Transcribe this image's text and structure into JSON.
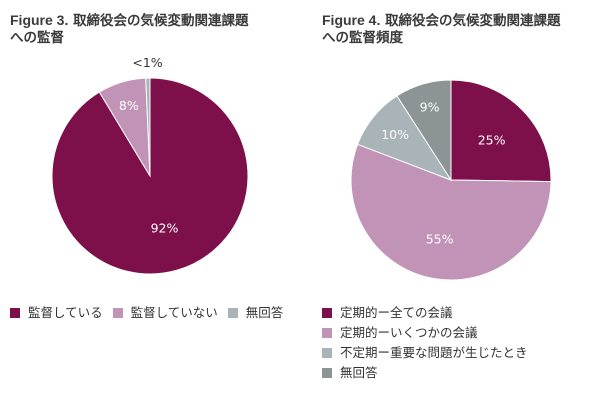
{
  "charts": [
    {
      "title_prefix": "Figure 3.",
      "title_line1": "取締役会の気候変動関連課題",
      "title_line2": "への監督"
    },
    {
      "title_prefix": "Figure 4.",
      "title_line1": "取締役会の気候変動関連課題",
      "title_line2": "への監督頻度"
    }
  ],
  "chart_data": [
    {
      "type": "pie",
      "slices": [
        {
          "label": "監督している",
          "value": 92,
          "display": "92%",
          "color": "#7d0f4a",
          "text_color": "#ffffff"
        },
        {
          "label": "監督していない",
          "value": 8,
          "display": "8%",
          "color": "#c193b7",
          "text_color": "#ffffff"
        },
        {
          "label": "無回答",
          "value": 0.7,
          "display": "<1%",
          "color": "#a9b4b8",
          "text_color": "#333333"
        }
      ],
      "legend_position": "bottom"
    },
    {
      "type": "pie",
      "slices": [
        {
          "label": "定期的ー全ての会議",
          "value": 25,
          "display": "25%",
          "color": "#7d0f4a",
          "text_color": "#ffffff"
        },
        {
          "label": "定期的ーいくつかの会議",
          "value": 55,
          "display": "55%",
          "color": "#c193b7",
          "text_color": "#ffffff"
        },
        {
          "label": "不定期ー重要な問題が生じたとき",
          "value": 10,
          "display": "10%",
          "color": "#a9b4b8",
          "text_color": "#ffffff"
        },
        {
          "label": "無回答",
          "value": 9,
          "display": "9%",
          "color": "#8d9496",
          "text_color": "#ffffff"
        }
      ],
      "legend_position": "bottom"
    }
  ]
}
